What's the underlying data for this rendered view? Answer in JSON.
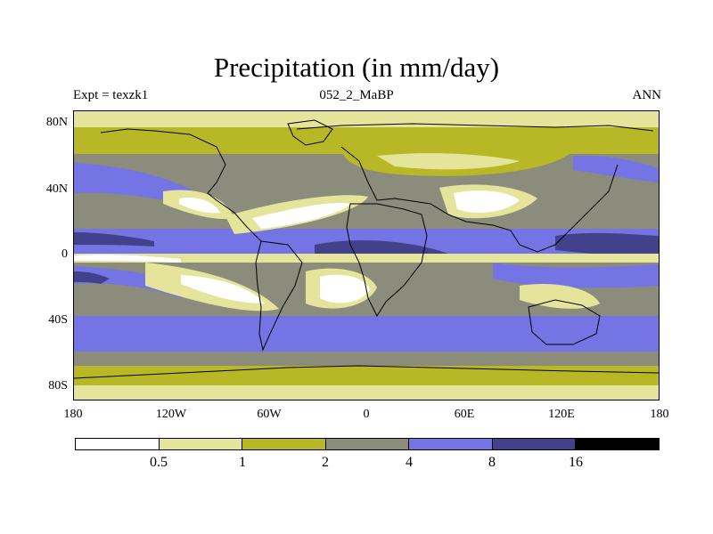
{
  "title": "Precipitation (in mm/day)",
  "subtitle_left": "Expt = texzk1",
  "subtitle_center": "052_2_MaBP",
  "subtitle_right": "ANN",
  "y_ticks": [
    "80N",
    "40N",
    "0",
    "40S",
    "80S"
  ],
  "x_ticks": [
    "180",
    "120W",
    "60W",
    "0",
    "60E",
    "120E",
    "180"
  ],
  "colorbar": {
    "colors": [
      "#ffffff",
      "#e4e49a",
      "#b8b826",
      "#8c8c7c",
      "#7474e4",
      "#42428c",
      "#000000"
    ],
    "labels": [
      "0.5",
      "1",
      "2",
      "4",
      "8",
      "16"
    ]
  },
  "colors": {
    "ocean_background": "#8c8c7c",
    "coastline": "#000000"
  }
}
